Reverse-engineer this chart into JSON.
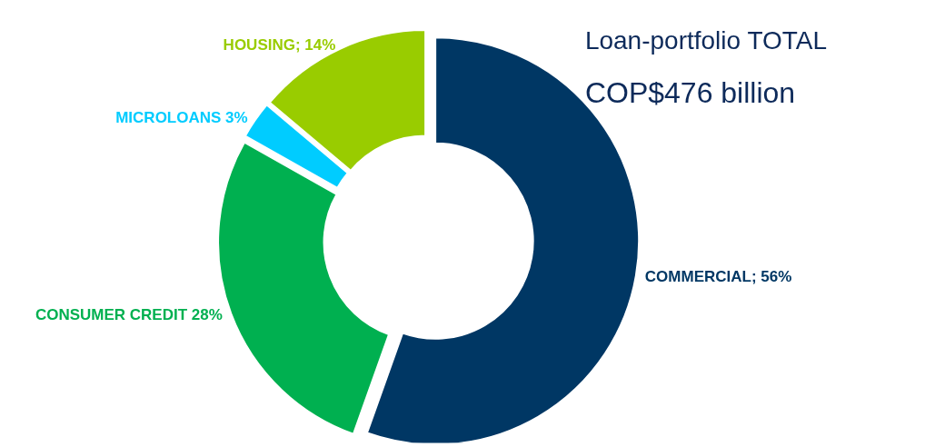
{
  "chart_data": {
    "type": "donut",
    "title": "Loan-portfolio TOTAL",
    "subtitle": "COP$476 billion",
    "categories": [
      "COMMERCIAL; 56%",
      "CONSUMER CREDIT 28%",
      "MICROLOANS 3%",
      "HOUSING; 14%"
    ],
    "values": [
      56,
      28,
      3,
      14
    ],
    "colors": [
      "#003764",
      "#00b050",
      "#00ccff",
      "#99cc00"
    ]
  }
}
